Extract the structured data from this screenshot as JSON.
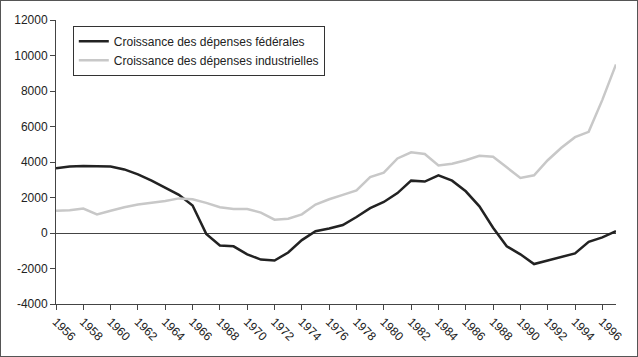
{
  "chart_data": {
    "type": "line",
    "x": [
      1956,
      1957,
      1958,
      1959,
      1960,
      1961,
      1962,
      1963,
      1964,
      1965,
      1966,
      1967,
      1968,
      1969,
      1970,
      1971,
      1972,
      1973,
      1974,
      1975,
      1976,
      1977,
      1978,
      1979,
      1980,
      1981,
      1982,
      1983,
      1984,
      1985,
      1986,
      1987,
      1988,
      1989,
      1990,
      1991,
      1992,
      1993,
      1994,
      1995,
      1996,
      1997
    ],
    "series": [
      {
        "name": "Croissance des dépenses fédérales",
        "color": "#222222",
        "values": [
          3650,
          3750,
          3780,
          3780,
          3750,
          3580,
          3300,
          2950,
          2550,
          2150,
          1550,
          -50,
          -700,
          -750,
          -1200,
          -1500,
          -1550,
          -1100,
          -400,
          100,
          250,
          450,
          900,
          1400,
          1750,
          2250,
          2950,
          2900,
          3250,
          2950,
          2350,
          1500,
          300,
          -750,
          -1200,
          -1750,
          -1550,
          -1350,
          -1150,
          -500,
          -250,
          100
        ]
      },
      {
        "name": "Croissance des dépenses industrielles",
        "color": "#c8c8c8",
        "values": [
          1250,
          1280,
          1380,
          1050,
          1250,
          1450,
          1600,
          1700,
          1800,
          1950,
          1900,
          1700,
          1450,
          1350,
          1350,
          1150,
          750,
          800,
          1050,
          1600,
          1900,
          2150,
          2400,
          3150,
          3400,
          4200,
          4550,
          4450,
          3800,
          3900,
          4100,
          4350,
          4300,
          3700,
          3100,
          3250,
          4100,
          4800,
          5400,
          5700,
          7500,
          9500
        ]
      }
    ],
    "xlim": [
      1956,
      1997
    ],
    "xticks": [
      1956,
      1958,
      1960,
      1962,
      1964,
      1966,
      1968,
      1970,
      1972,
      1974,
      1976,
      1978,
      1980,
      1982,
      1984,
      1986,
      1988,
      1990,
      1992,
      1994,
      1996
    ],
    "ylim": [
      -4000,
      12000
    ],
    "yticks": [
      -4000,
      -2000,
      0,
      2000,
      4000,
      6000,
      8000,
      10000,
      12000
    ],
    "grid": false,
    "legend": "top left"
  }
}
